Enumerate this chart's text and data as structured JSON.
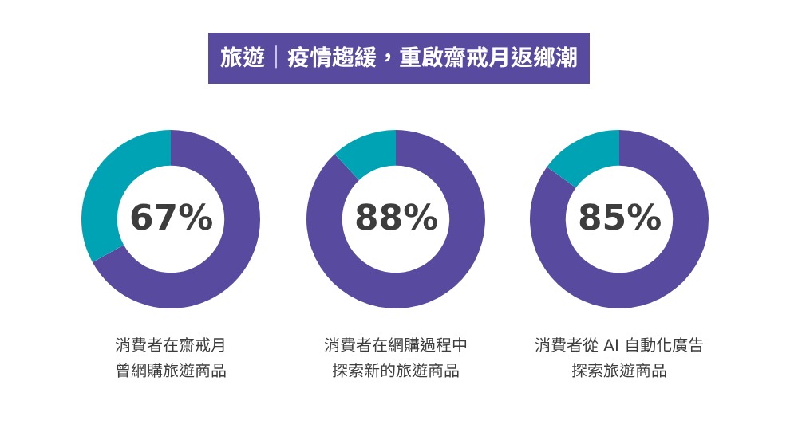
{
  "chart_data": [
    {
      "type": "donut",
      "title": "旅遊｜疫情趨緩，重啟齋戒月返鄉潮",
      "categories": [
        null,
        null
      ],
      "values": [
        67,
        33
      ],
      "colors": [
        "#574a9f",
        "#00a3b4"
      ],
      "value_labels": [
        "67%",
        null
      ],
      "annotations": [
        "消費者在齋戒月",
        "曾網購旅遊商品"
      ],
      "legend": false
    },
    {
      "type": "donut",
      "categories": [
        null,
        null
      ],
      "values": [
        88,
        12
      ],
      "colors": [
        "#574a9f",
        "#00a3b4"
      ],
      "value_labels": [
        "88%",
        null
      ],
      "annotations": [
        "消費者在網購過程中",
        "探索新的旅遊商品"
      ],
      "legend": false
    },
    {
      "type": "donut",
      "categories": [
        null,
        null
      ],
      "values": [
        85,
        15
      ],
      "colors": [
        "#574a9f",
        "#00a3b4"
      ],
      "value_labels": [
        "85%",
        null
      ],
      "annotations": [
        "消費者從 AI 自動化廣告",
        "探索旅遊商品"
      ],
      "legend": false
    }
  ]
}
